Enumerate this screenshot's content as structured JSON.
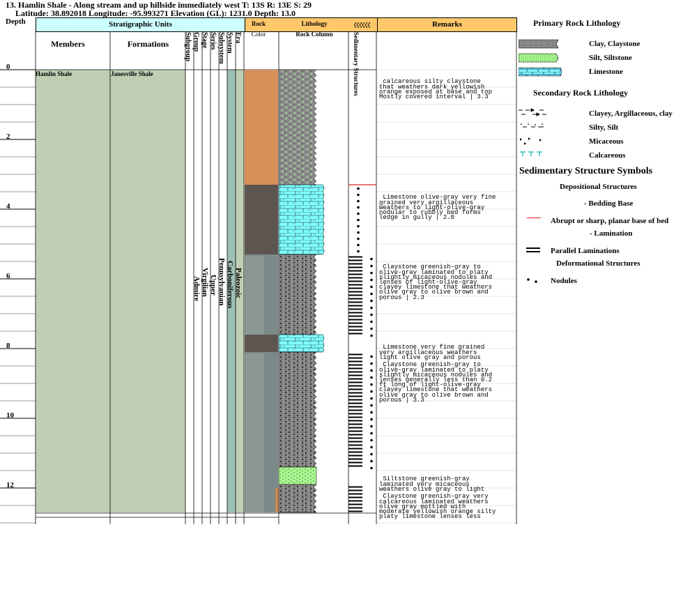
{
  "header": {
    "title": "13. Hamlin Shale - Along stream and up hillside immediately west T: 13S R: 13E S: 29",
    "location": "Latitude: 38.892018 Longitude: -95.993271 Elevation (GL): 1231.0 Depth: 13.0"
  },
  "columns": {
    "depth": "Depth",
    "strat_units": "Stratigraphic Units",
    "members": "Members",
    "formations": "Formations",
    "subgroup": "Subgroup",
    "group": "Group",
    "stage": "Stage",
    "series": "Series",
    "subsystem": "Subsystem",
    "system": "System",
    "era": "Era",
    "rock": "Rock",
    "color": "Color",
    "lithology": "Lithology",
    "rock_column": "Rock Column",
    "sed_structures": "Sedimentary Structures",
    "remarks": "Remarks"
  },
  "depth_ticks": [
    "0",
    "2",
    "4",
    "6",
    "8",
    "10",
    "12"
  ],
  "strat": {
    "member": "Hamlin Shale",
    "formation": "Janesville Shale",
    "group": "Admire",
    "stage": "Virgilian",
    "series": "Upper",
    "subsystem": "Pennsylvanian",
    "system": "Carboniferous",
    "era": "Paleozoic"
  },
  "rock_colors": [
    {
      "from": 0,
      "to": 3.3,
      "color": "#d78f5a"
    },
    {
      "from": 3.3,
      "to": 5.3,
      "color": "#5d5550"
    },
    {
      "from": 5.3,
      "to": 7.6,
      "color": "#7b8a88"
    },
    {
      "from": 7.6,
      "to": 8.1,
      "color": "#5d5550"
    },
    {
      "from": 8.1,
      "to": 12.7,
      "color": "#7b8a88"
    }
  ],
  "colors": {
    "header_cyan": "#ccffff",
    "header_orange": "#ffc86b",
    "strat_fill": "#bfcfb3",
    "band_shade": "#4f8a75",
    "claystone": "#8e8e8e",
    "limestone": "#7fffff",
    "siltstone": "#a8f78f",
    "bedding_base": "#e02020"
  },
  "remarks": [
    {
      "depth": 0,
      "lines": [
        " calcareous silty claystone",
        "that weathers dark yellowish",
        "orange exposed at base and top",
        "Mostly covered interval | 3.3"
      ]
    },
    {
      "depth": 3.4,
      "lines": [
        " Limestone olive-gray very fine",
        "grained very argillaceous",
        "weathers to light-olive-gray",
        "nodular to rubbly bed forms",
        "ledge in gully | 2.0"
      ]
    },
    {
      "depth": 5.4,
      "lines": [
        " Claystone greenish-gray to",
        "olive-gray laminated to platy",
        "slightly micaceous nodules and",
        "lenses of light-olive-gray",
        "clayey limestone that weathers",
        "olive gray to olive brown and",
        "porous | 2.3"
      ]
    },
    {
      "depth": 7.8,
      "lines": [
        " Limestone very fine grained",
        "very argillaceous weathers",
        "light olive gray and porous"
      ]
    },
    {
      "depth": 8.1,
      "lines": [
        " Claystone greenish-gray to",
        "olive-gray laminated to platy",
        "slightly micaceous nodules and",
        "lenses generally less than 0.2",
        "ft long of light-olive-gray",
        "clayey limestone that weathers",
        "olive gray to olive brown and",
        "porous | 3.3"
      ]
    },
    {
      "depth": 11.4,
      "lines": [
        " Siltstone greenish-gray",
        "laminated very micaceous",
        "weathers olive gray to light"
      ]
    },
    {
      "depth": 11.9,
      "lines": [
        " Claystone greenish-gray very",
        "calcareous laminated weathers",
        "olive gray mottled with",
        "moderate yellowish orange silty",
        "platy limestone lenses less"
      ]
    }
  ],
  "legend": {
    "primary_title": "Primary Rock Lithology",
    "primary": [
      {
        "label": "Clay, Claystone",
        "icon": "claystone-pattern"
      },
      {
        "label": "Silt, Siltstone",
        "icon": "siltstone-pattern"
      },
      {
        "label": "Limestone",
        "icon": "limestone-pattern"
      }
    ],
    "secondary_title": "Secondary Rock Lithology",
    "secondary": [
      {
        "label": "Clayey, Argillaceous, clay",
        "icon": "clayey-pattern"
      },
      {
        "label": "Silty, Silt",
        "icon": "silty-pattern"
      },
      {
        "label": "Micaceous",
        "icon": "micaceous-pattern"
      },
      {
        "label": "Calcareous",
        "icon": "calcareous-pattern"
      }
    ],
    "sed_title": "Sedimentary Structure Symbols",
    "depositional_title": "Depositional Structures",
    "bedding_base": "- Bedding Base",
    "abrupt": "Abrupt or sharp, planar base of bed",
    "lamination": "- Lamination",
    "parallel": "Parallel Laminations",
    "deformational_title": "Deformational Structures",
    "nodules": "Nodules"
  }
}
